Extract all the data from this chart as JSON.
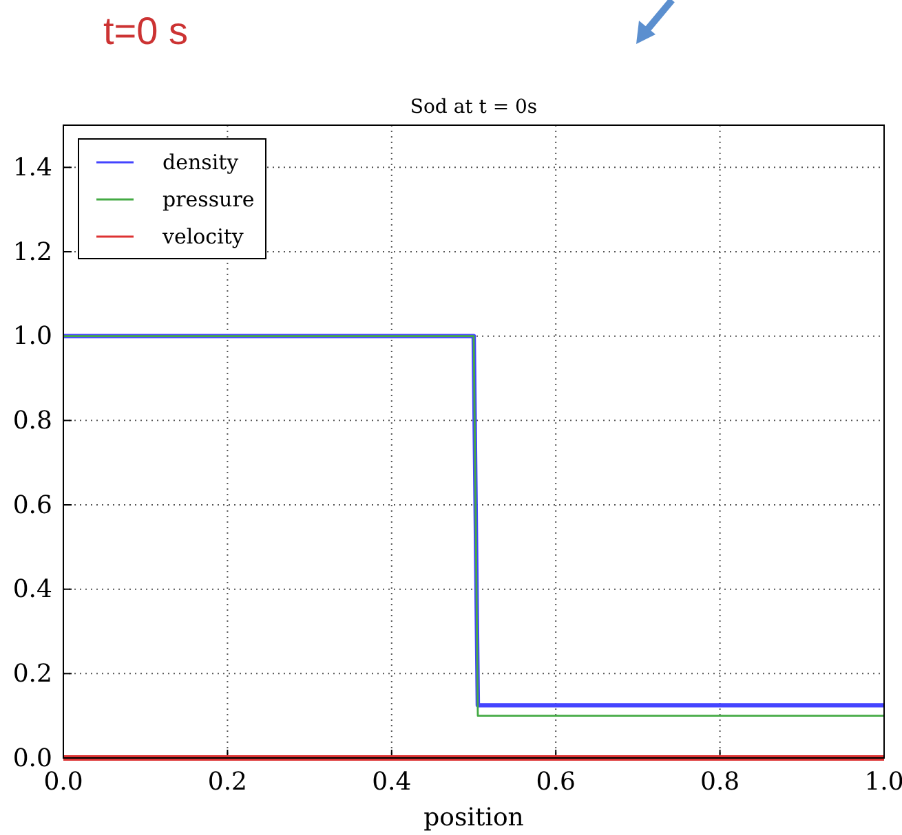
{
  "chart_data": {
    "type": "line",
    "title": "Sod at t = 0s",
    "xlabel": "position",
    "annotations": [
      "t=0 s"
    ],
    "xlim": [
      0,
      1
    ],
    "xticks": [
      {
        "value": 0,
        "label": "0.0"
      },
      0.2,
      0.4,
      0.6,
      0.8,
      {
        "value": 1,
        "label": "1.0"
      }
    ],
    "ylim": [
      0,
      1.5
    ],
    "yticks": [
      {
        "value": 0,
        "label": "0.0"
      },
      0.2,
      0.4,
      0.6,
      0.8,
      {
        "value": 1,
        "label": "1.0"
      },
      1.2,
      1.4
    ],
    "grid": true,
    "legend": "top left",
    "line_style": "solid",
    "series": [
      {
        "name": "density",
        "color": "#4444ff",
        "x": [
          0,
          0.5,
          0.505,
          1
        ],
        "values": [
          1,
          1,
          0.125,
          0.125
        ]
      },
      {
        "name": "pressure",
        "color": "#44aa44",
        "x": [
          0,
          0.5,
          0.505,
          1
        ],
        "values": [
          1,
          1,
          0.1,
          0.1
        ]
      },
      {
        "name": "velocity",
        "color": "#dd3333",
        "x": [
          0,
          1
        ],
        "values": [
          0,
          0
        ]
      }
    ]
  }
}
